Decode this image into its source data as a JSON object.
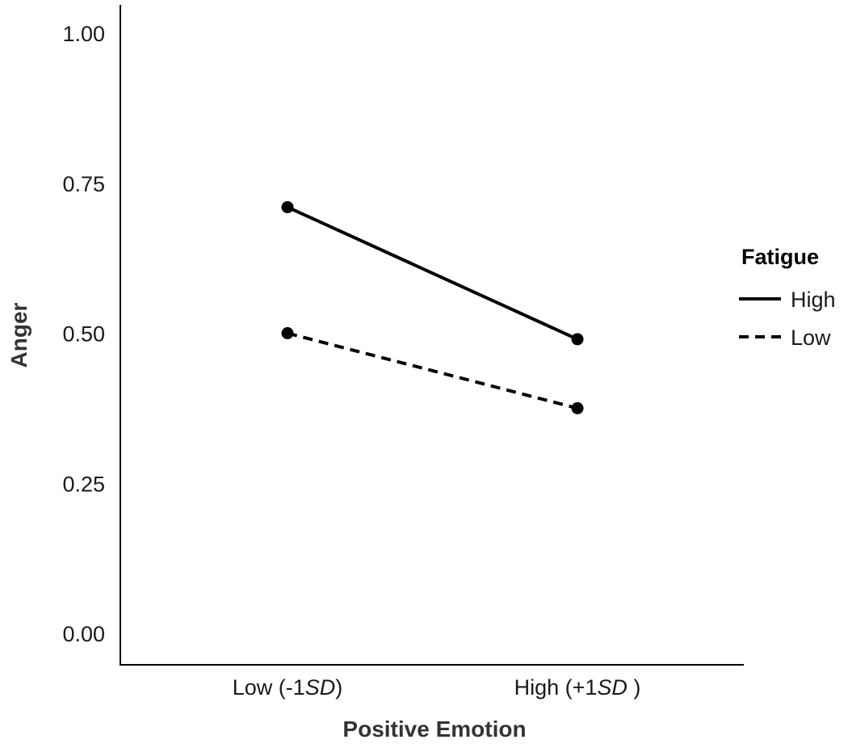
{
  "chart_data": {
    "type": "line",
    "title": "",
    "xlabel": "Positive Emotion",
    "ylabel": "Anger",
    "categories": [
      {
        "main": "Low (-1",
        "em": "SD",
        "tail": ")"
      },
      {
        "main": "High (+1",
        "em": "SD",
        "tail": " )"
      }
    ],
    "y_ticks": [
      "0.00",
      "0.25",
      "0.50",
      "0.75",
      "1.00"
    ],
    "ylim": [
      0,
      1.0
    ],
    "grid": false,
    "legend": {
      "title": "Fatigue",
      "placement": "right"
    },
    "series": [
      {
        "name": "High",
        "values": [
          0.71,
          0.49
        ],
        "line_style": "solid"
      },
      {
        "name": "Low",
        "values": [
          0.5,
          0.375
        ],
        "line_style": "dashed"
      }
    ],
    "colors": {
      "line": "#000000",
      "axis": "#000000"
    }
  }
}
